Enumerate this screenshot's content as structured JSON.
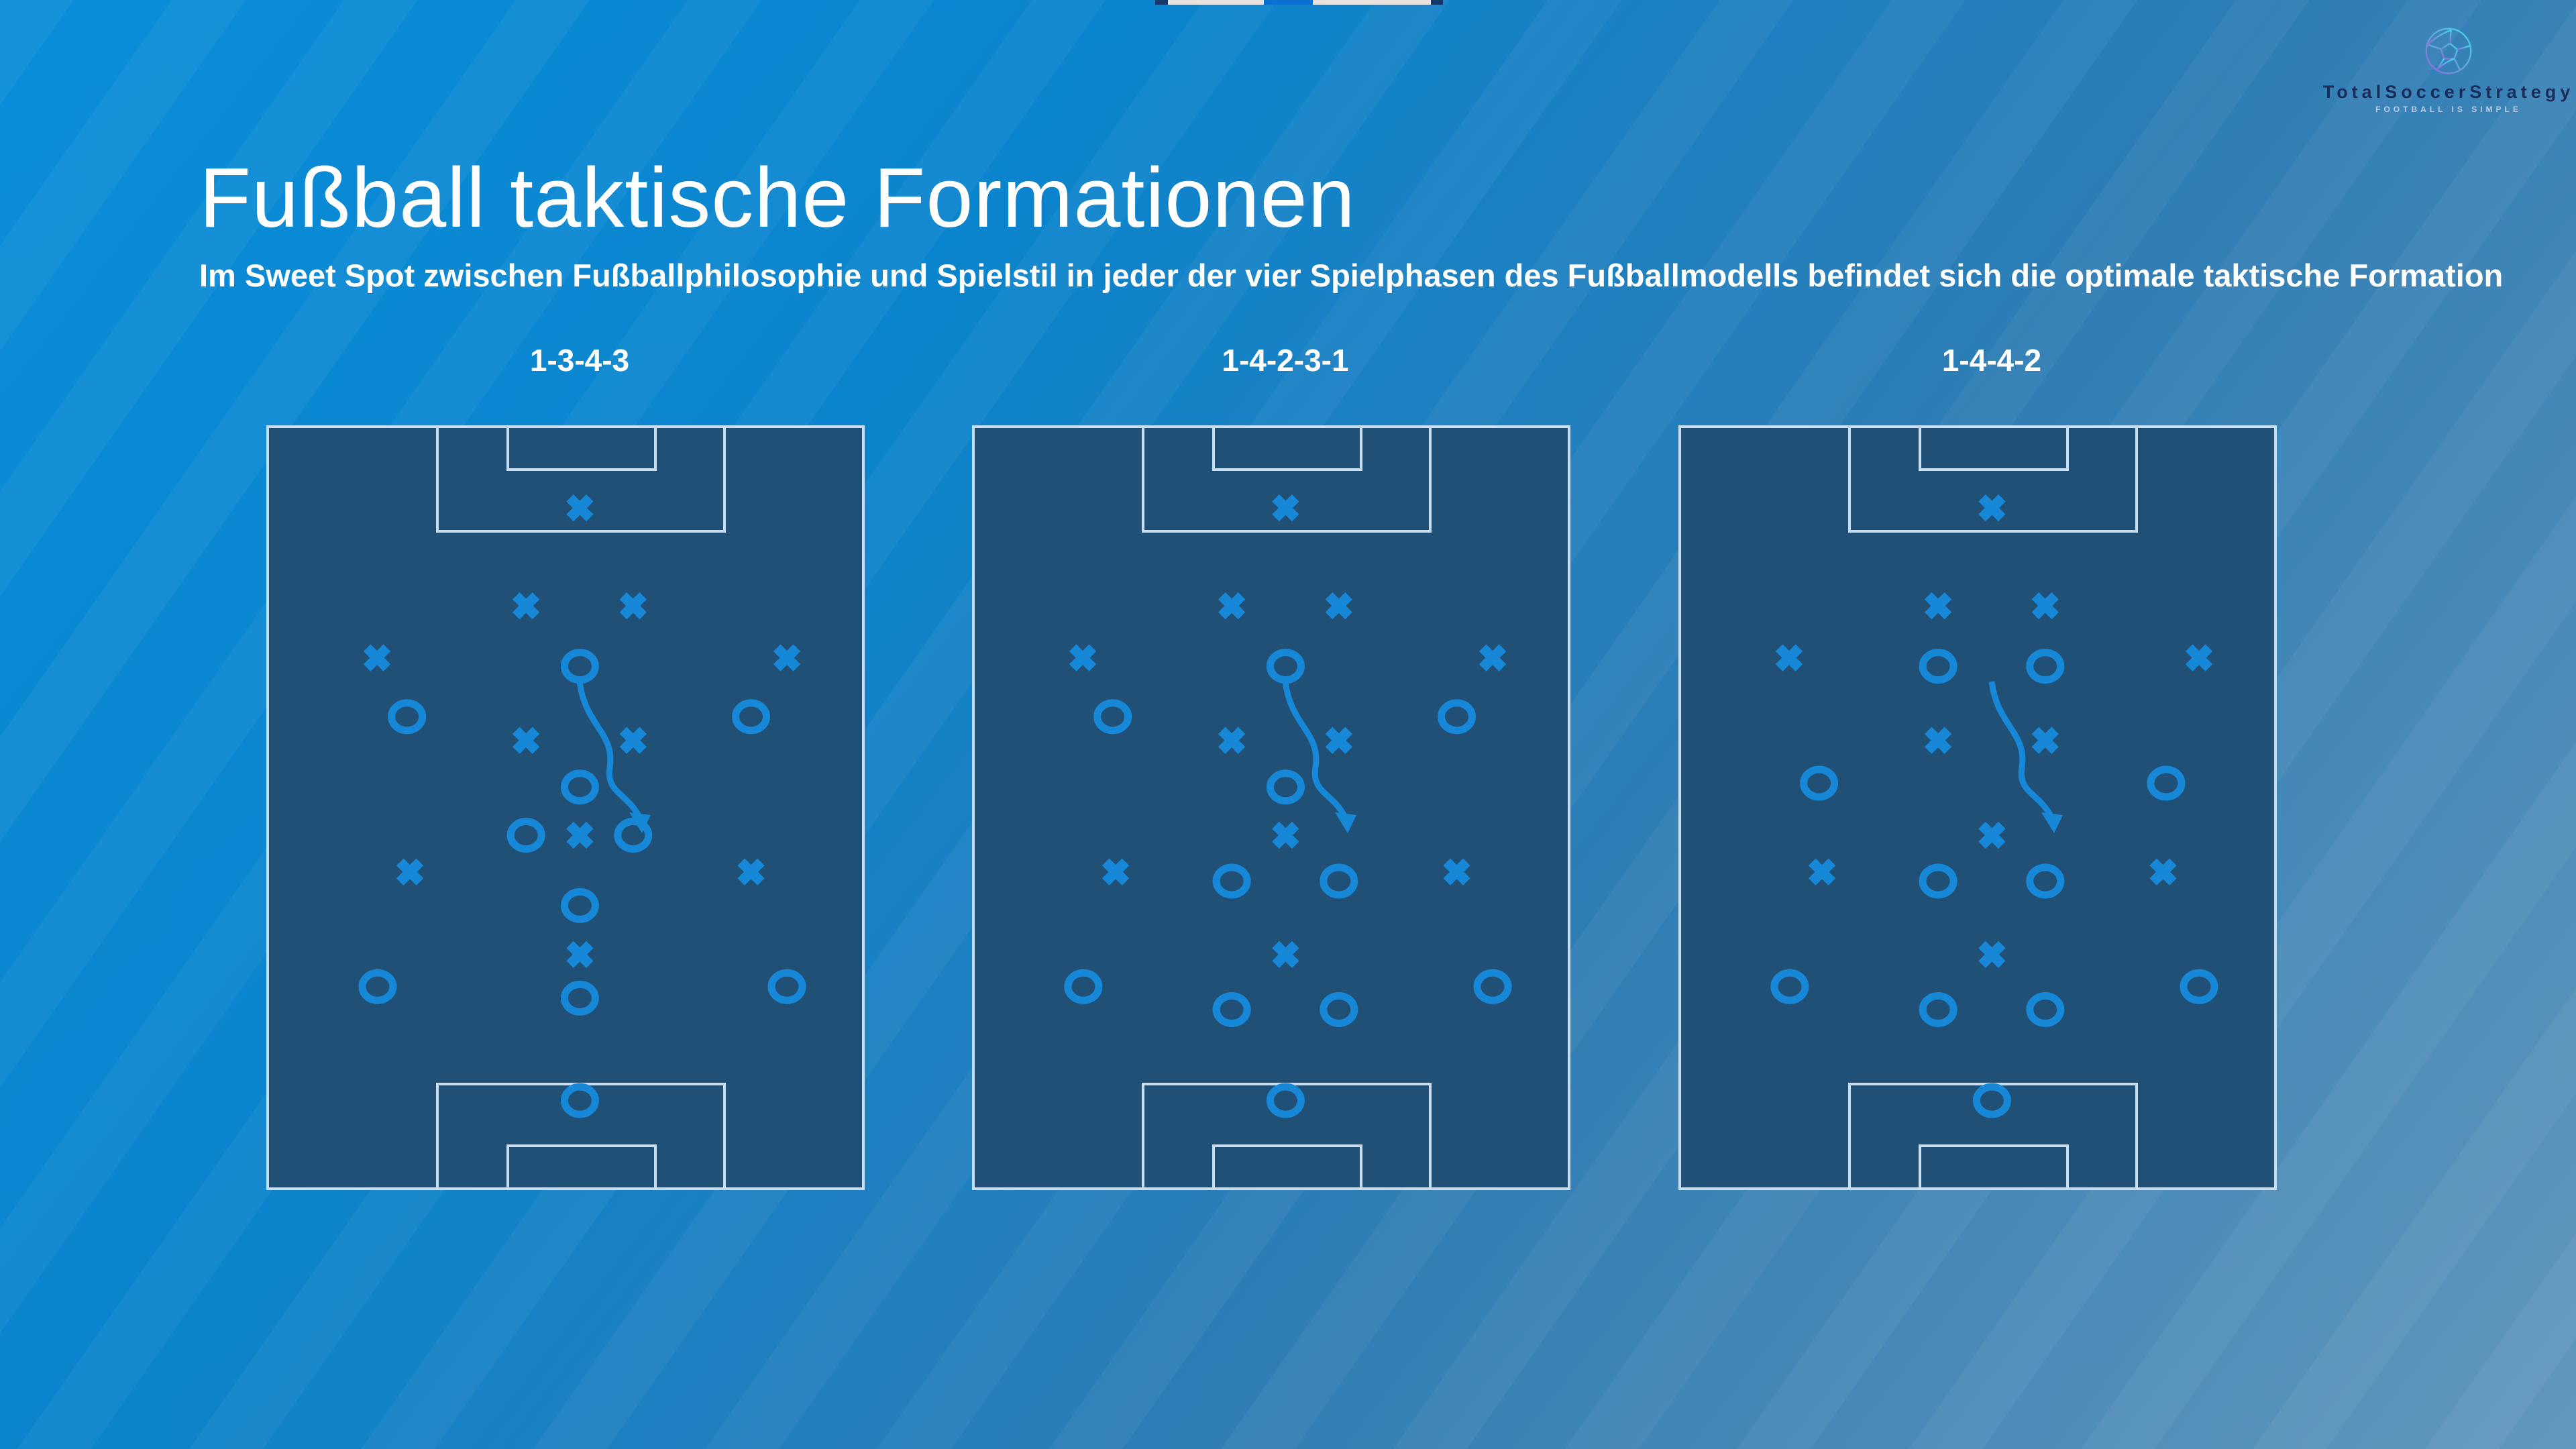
{
  "slide": {
    "title": "Fußball taktische Formationen",
    "subtitle": "Im Sweet Spot zwischen Fußballphilosophie und Spielstil in jeder der vier Spielphasen des Fußballmodells befindet sich die optimale taktische Formation"
  },
  "logo": {
    "brand": "TotalSoccerStrategy",
    "tagline": "FOOTBALL IS SIMPLE"
  },
  "top_strip": {
    "segments": [
      {
        "color": "#14386b",
        "width": 19
      },
      {
        "color": "#e9e2df",
        "width": 143
      },
      {
        "color": "#0b6fd4",
        "width": 73
      },
      {
        "color": "#e9e2df",
        "width": 176
      },
      {
        "color": "#14386b",
        "width": 18
      }
    ]
  },
  "colors": {
    "background_start": "#0a8ed9",
    "background_end": "#6397bb",
    "pitch_fill": "#215077",
    "pitch_line": "#c9ddf0",
    "marker": "#1787d7",
    "title_text": "#ffffff",
    "logo_text": "#1b2c5a",
    "ball_gradient_start": "#3fd9ec",
    "ball_gradient_end": "#8a6ad4"
  },
  "pitches": [
    {
      "id": "pitch-1-3-4-3",
      "label": "1-3-4-3",
      "team_x": [
        [
          52.4,
          10.8
        ],
        [
          43.4,
          23.6
        ],
        [
          61.3,
          23.6
        ],
        [
          18.5,
          30.4
        ],
        [
          87,
          30.4
        ],
        [
          43.4,
          41.2
        ],
        [
          61.3,
          41.2
        ],
        [
          52.4,
          53.6
        ],
        [
          24,
          58.4
        ],
        [
          81,
          58.4
        ],
        [
          52.4,
          69.2
        ]
      ],
      "team_o": [
        [
          52.4,
          31.5
        ],
        [
          23.5,
          38.1
        ],
        [
          81,
          38.1
        ],
        [
          52.4,
          47.3
        ],
        [
          43.4,
          53.6
        ],
        [
          61.3,
          53.6
        ],
        [
          52.4,
          62.8
        ],
        [
          18.6,
          73.4
        ],
        [
          87,
          73.4
        ],
        [
          52.4,
          74.9
        ],
        [
          52.4,
          88.3
        ]
      ],
      "arrow": true
    },
    {
      "id": "pitch-1-4-2-3-1",
      "label": "1-4-2-3-1",
      "team_x": [
        [
          52.4,
          10.8
        ],
        [
          43.4,
          23.6
        ],
        [
          61.3,
          23.6
        ],
        [
          18.5,
          30.4
        ],
        [
          87,
          30.4
        ],
        [
          43.4,
          41.2
        ],
        [
          61.3,
          41.2
        ],
        [
          52.4,
          53.6
        ],
        [
          24,
          58.4
        ],
        [
          81,
          58.4
        ],
        [
          52.4,
          69.2
        ]
      ],
      "team_o": [
        [
          52.4,
          31.5
        ],
        [
          23.5,
          38.1
        ],
        [
          81,
          38.1
        ],
        [
          52.4,
          47.3
        ],
        [
          43.4,
          59.6
        ],
        [
          61.3,
          59.6
        ],
        [
          18.6,
          73.4
        ],
        [
          87,
          73.4
        ],
        [
          43.4,
          76.4
        ],
        [
          61.3,
          76.4
        ],
        [
          52.4,
          88.3
        ]
      ],
      "arrow": true
    },
    {
      "id": "pitch-1-4-4-2",
      "label": "1-4-4-2",
      "team_x": [
        [
          52.4,
          10.8
        ],
        [
          43.4,
          23.6
        ],
        [
          61.3,
          23.6
        ],
        [
          18.5,
          30.4
        ],
        [
          87,
          30.4
        ],
        [
          43.4,
          41.2
        ],
        [
          61.3,
          41.2
        ],
        [
          52.4,
          53.6
        ],
        [
          24,
          58.4
        ],
        [
          81,
          58.4
        ],
        [
          52.4,
          69.2
        ]
      ],
      "team_o": [
        [
          43.4,
          31.5
        ],
        [
          61.3,
          31.5
        ],
        [
          23.5,
          46.8
        ],
        [
          81.5,
          46.8
        ],
        [
          43.4,
          59.6
        ],
        [
          61.3,
          59.6
        ],
        [
          18.6,
          73.4
        ],
        [
          87,
          73.4
        ],
        [
          43.4,
          76.4
        ],
        [
          61.3,
          76.4
        ],
        [
          52.4,
          88.3
        ]
      ],
      "arrow": true
    }
  ]
}
